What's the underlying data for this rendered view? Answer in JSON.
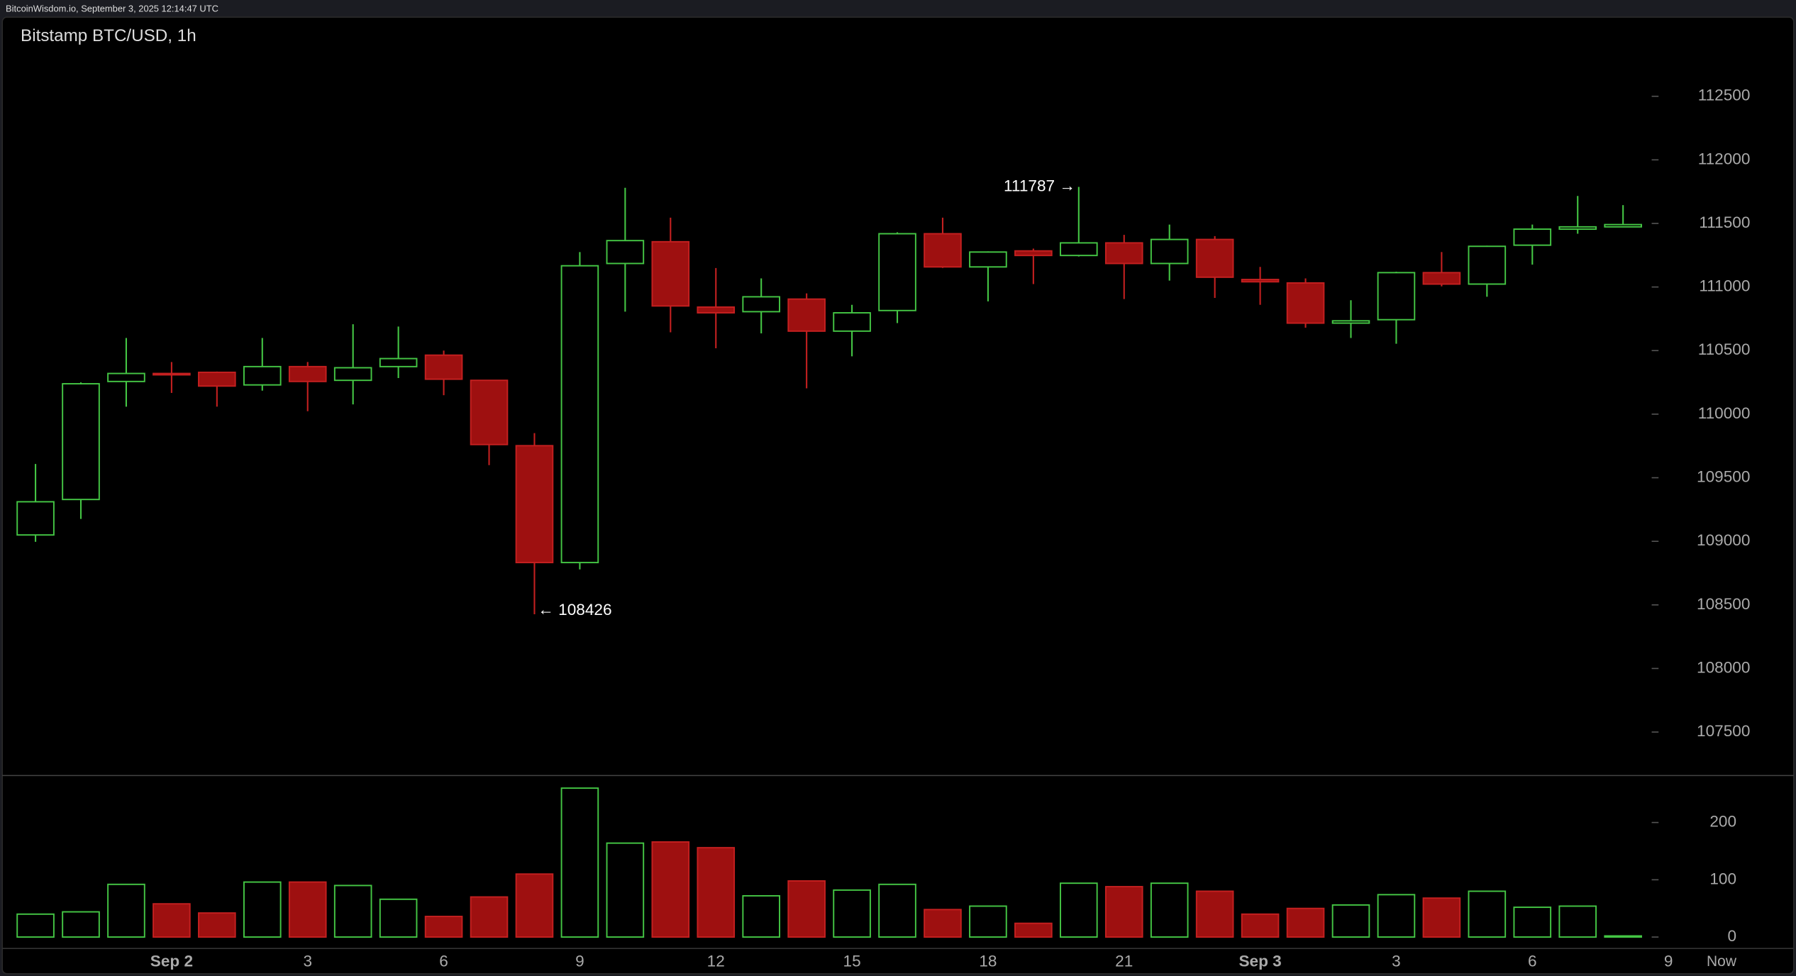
{
  "header": "BitcoinWisdom.io, September 3, 2025 12:14:47 UTC",
  "chart_data": {
    "type": "candlestick",
    "title": "Bitstamp BTC/USD, 1h",
    "categories": [
      null,
      null,
      null,
      "Sep 2",
      null,
      null,
      "3",
      null,
      null,
      "6",
      null,
      null,
      "9",
      null,
      null,
      "12",
      null,
      null,
      "15",
      null,
      null,
      "18",
      null,
      null,
      "21",
      null,
      null,
      "Sep 3",
      null,
      null,
      "3",
      null,
      null,
      "6",
      null,
      null
    ],
    "x_end_labels": [
      "9",
      "Now"
    ],
    "open": [
      109050,
      109329,
      110257,
      110320,
      110329,
      110230,
      110374,
      110266,
      110374,
      110464,
      110266,
      109752,
      108833,
      111185,
      111356,
      110842,
      110806,
      110905,
      110653,
      110815,
      111419,
      111158,
      111284,
      111248,
      111347,
      111185,
      111374,
      111059,
      111032,
      110716,
      110743,
      111113,
      111023,
      111329,
      111455,
      111473
    ],
    "high": [
      109608,
      110250,
      110599,
      110410,
      110335,
      110599,
      110410,
      110707,
      110689,
      110500,
      110270,
      109851,
      111275,
      111780,
      111545,
      111149,
      111068,
      110950,
      110860,
      111430,
      111545,
      111280,
      111302,
      111787,
      111410,
      111491,
      111400,
      111158,
      111068,
      110896,
      111120,
      111275,
      111325,
      111491,
      111716,
      111644
    ],
    "low": [
      108996,
      109176,
      110059,
      110167,
      110059,
      110185,
      110023,
      110077,
      110284,
      110149,
      109599,
      108426,
      108779,
      110806,
      110644,
      110518,
      110635,
      110203,
      110455,
      110716,
      111150,
      110887,
      111023,
      111240,
      110905,
      111050,
      110914,
      110860,
      110680,
      110599,
      110554,
      111005,
      110923,
      111176,
      111419,
      111473
    ],
    "close": [
      109311,
      110239,
      110320,
      110310,
      110221,
      110374,
      110257,
      110365,
      110437,
      110275,
      109761,
      108833,
      111167,
      111365,
      110851,
      110797,
      110923,
      110653,
      110797,
      111419,
      111158,
      111275,
      111248,
      111347,
      111185,
      111374,
      111077,
      111041,
      110716,
      110734,
      111113,
      111023,
      111320,
      111455,
      111473,
      111491
    ],
    "volume": [
      40,
      44,
      92,
      58,
      42,
      96,
      96,
      90,
      66,
      36,
      70,
      110,
      260,
      164,
      166,
      156,
      72,
      98,
      82,
      92,
      48,
      54,
      24,
      94,
      88,
      94,
      80,
      40,
      50,
      56,
      74,
      68,
      80,
      52,
      54,
      2
    ],
    "high_label": "111787 →",
    "low_label": "← 108426",
    "up_color": "#44c544",
    "down_color": "#c42020",
    "ylim": [
      107158,
      113122
    ],
    "yticks": [
      107500,
      108000,
      108500,
      109000,
      109500,
      110000,
      110500,
      111000,
      111500,
      112000,
      112500
    ],
    "y2lim": [
      0,
      282
    ],
    "y2ticks": [
      0,
      100,
      200
    ]
  }
}
